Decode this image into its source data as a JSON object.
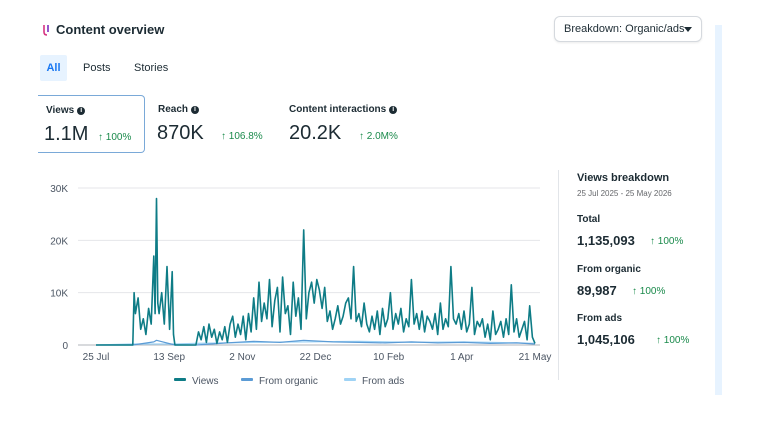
{
  "header": {
    "title": "Content overview",
    "breakdown_label": "Breakdown: Organic/ads"
  },
  "tabs": [
    {
      "label": "All",
      "active": true
    },
    {
      "label": "Posts",
      "active": false
    },
    {
      "label": "Stories",
      "active": false
    }
  ],
  "metrics": [
    {
      "label": "Views",
      "value": "1.1M",
      "change": "↑ 100%",
      "selected": true
    },
    {
      "label": "Reach",
      "value": "870K",
      "change": "↑ 106.8%",
      "selected": false
    },
    {
      "label": "Content interactions",
      "value": "20.2K",
      "change": "↑ 2.0M%",
      "selected": false
    }
  ],
  "legend": [
    "Views",
    "From organic",
    "From ads"
  ],
  "colors": {
    "views": "#0e7c86",
    "organic": "#5b9bd5",
    "ads": "#9fd3f5",
    "accent": "#1877f2",
    "positive": "#1a8a4b"
  },
  "breakdown": {
    "title": "Views breakdown",
    "date_range": "25 Jul 2025 - 25 May 2026",
    "total_label": "Total",
    "total_value": "1,135,093",
    "total_change": "↑ 100%",
    "organic_label": "From organic",
    "organic_value": "89,987",
    "organic_change": "↑ 100%",
    "ads_label": "From ads",
    "ads_value": "1,045,106",
    "ads_change": "↑ 100%"
  },
  "chart_data": {
    "type": "line",
    "x_ticks": [
      "25 Jul",
      "13 Sep",
      "2 Nov",
      "22 Dec",
      "10 Feb",
      "1 Apr",
      "21 May"
    ],
    "y_ticks": [
      "0",
      "10K",
      "20K",
      "30K"
    ],
    "ylim": [
      0,
      30000
    ],
    "grid": true,
    "legend_position": "bottom",
    "series": [
      {
        "name": "Views",
        "points": [
          [
            0,
            0
          ],
          [
            14,
            0
          ],
          [
            14.5,
            10000
          ],
          [
            15,
            6000
          ],
          [
            16,
            9000
          ],
          [
            17,
            3000
          ],
          [
            18,
            5000
          ],
          [
            19,
            2000
          ],
          [
            20,
            7000
          ],
          [
            21,
            4000
          ],
          [
            22,
            17000
          ],
          [
            22.5,
            6000
          ],
          [
            23,
            28000
          ],
          [
            23.5,
            8000
          ],
          [
            24,
            6000
          ],
          [
            25,
            10000
          ],
          [
            26,
            4000
          ],
          [
            27,
            15000
          ],
          [
            28,
            3000
          ],
          [
            29,
            14000
          ],
          [
            29.5,
            2000
          ],
          [
            30,
            0
          ],
          [
            38,
            0
          ],
          [
            39,
            2500
          ],
          [
            40,
            1000
          ],
          [
            41,
            3500
          ],
          [
            42,
            500
          ],
          [
            43,
            4000
          ],
          [
            44,
            1500
          ],
          [
            45,
            3000
          ],
          [
            46,
            300
          ],
          [
            47,
            2500
          ],
          [
            48,
            1000
          ],
          [
            49,
            3500
          ],
          [
            50,
            500
          ],
          [
            51,
            4000
          ],
          [
            52,
            5500
          ],
          [
            53,
            1500
          ],
          [
            54,
            4000
          ],
          [
            55,
            2000
          ],
          [
            56,
            5500
          ],
          [
            57,
            1000
          ],
          [
            58,
            6000
          ],
          [
            59,
            2500
          ],
          [
            60,
            9000
          ],
          [
            61,
            3000
          ],
          [
            62,
            12000
          ],
          [
            63,
            4500
          ],
          [
            64,
            8000
          ],
          [
            65,
            5000
          ],
          [
            66,
            12500
          ],
          [
            67,
            3500
          ],
          [
            68,
            8500
          ],
          [
            69,
            11000
          ],
          [
            70,
            2500
          ],
          [
            71,
            13000
          ],
          [
            72,
            6000
          ],
          [
            73,
            7500
          ],
          [
            74,
            2000
          ],
          [
            75,
            12000
          ],
          [
            76,
            5500
          ],
          [
            77,
            9000
          ],
          [
            78,
            3000
          ],
          [
            79,
            22000
          ],
          [
            80,
            5000
          ],
          [
            81,
            10000
          ],
          [
            82,
            12000
          ],
          [
            83,
            8000
          ],
          [
            84,
            12500
          ],
          [
            85,
            10500
          ],
          [
            86,
            7000
          ],
          [
            87,
            11000
          ],
          [
            88,
            4500
          ],
          [
            89,
            6500
          ],
          [
            90,
            3000
          ],
          [
            91,
            5000
          ],
          [
            92,
            7500
          ],
          [
            93,
            4000
          ],
          [
            94,
            5500
          ],
          [
            95,
            8000
          ],
          [
            96,
            9000
          ],
          [
            97,
            5000
          ],
          [
            98,
            15000
          ],
          [
            99,
            4500
          ],
          [
            100,
            6000
          ],
          [
            101,
            3500
          ],
          [
            102,
            8000
          ],
          [
            103,
            4000
          ],
          [
            104,
            2500
          ],
          [
            105,
            5500
          ],
          [
            106,
            3000
          ],
          [
            107,
            6500
          ],
          [
            108,
            2000
          ],
          [
            109,
            7000
          ],
          [
            110,
            3500
          ],
          [
            111,
            5000
          ],
          [
            112,
            10000
          ],
          [
            113,
            3000
          ],
          [
            114,
            6000
          ],
          [
            115,
            4000
          ],
          [
            116,
            7000
          ],
          [
            117,
            2500
          ],
          [
            118,
            5000
          ],
          [
            119,
            3500
          ],
          [
            120,
            12500
          ],
          [
            121,
            4000
          ],
          [
            122,
            6000
          ],
          [
            123,
            3000
          ],
          [
            124,
            6500
          ],
          [
            125,
            2500
          ],
          [
            126,
            5500
          ],
          [
            127,
            4500
          ],
          [
            128,
            3000
          ],
          [
            129,
            6000
          ],
          [
            130,
            2000
          ],
          [
            131,
            8000
          ],
          [
            132,
            3000
          ],
          [
            133,
            5000
          ],
          [
            134,
            3500
          ],
          [
            135,
            15000
          ],
          [
            136,
            5000
          ],
          [
            137,
            4000
          ],
          [
            138,
            6000
          ],
          [
            139,
            3000
          ],
          [
            140,
            6500
          ],
          [
            141,
            2500
          ],
          [
            142,
            4000
          ],
          [
            143,
            11000
          ],
          [
            144,
            2000
          ],
          [
            145,
            4500
          ],
          [
            146,
            3500
          ],
          [
            147,
            5000
          ],
          [
            148,
            1500
          ],
          [
            149,
            4000
          ],
          [
            150,
            1000
          ],
          [
            151,
            6500
          ],
          [
            152,
            2000
          ],
          [
            153,
            3000
          ],
          [
            154,
            4500
          ],
          [
            155,
            1500
          ],
          [
            156,
            5000
          ],
          [
            157,
            2000
          ],
          [
            158,
            11500
          ],
          [
            159,
            2500
          ],
          [
            160,
            5000
          ],
          [
            161,
            1500
          ],
          [
            162,
            3000
          ],
          [
            163,
            4500
          ],
          [
            164,
            1000
          ],
          [
            165,
            7500
          ],
          [
            166,
            1500
          ],
          [
            167,
            300
          ]
        ]
      },
      {
        "name": "From organic",
        "points": [
          [
            0,
            0
          ],
          [
            14,
            0
          ],
          [
            22,
            600
          ],
          [
            23,
            900
          ],
          [
            30,
            0
          ],
          [
            38,
            0
          ],
          [
            50,
            400
          ],
          [
            60,
            700
          ],
          [
            70,
            500
          ],
          [
            79,
            900
          ],
          [
            90,
            600
          ],
          [
            100,
            500
          ],
          [
            110,
            400
          ],
          [
            120,
            600
          ],
          [
            130,
            400
          ],
          [
            140,
            500
          ],
          [
            150,
            300
          ],
          [
            160,
            400
          ],
          [
            167,
            200
          ]
        ]
      },
      {
        "name": "From ads",
        "points": [
          [
            0,
            0
          ],
          [
            14,
            200
          ],
          [
            30,
            200
          ],
          [
            38,
            300
          ],
          [
            60,
            500
          ],
          [
            79,
            600
          ],
          [
            100,
            700
          ],
          [
            120,
            500
          ],
          [
            140,
            600
          ],
          [
            160,
            400
          ],
          [
            167,
            300
          ]
        ]
      }
    ]
  }
}
